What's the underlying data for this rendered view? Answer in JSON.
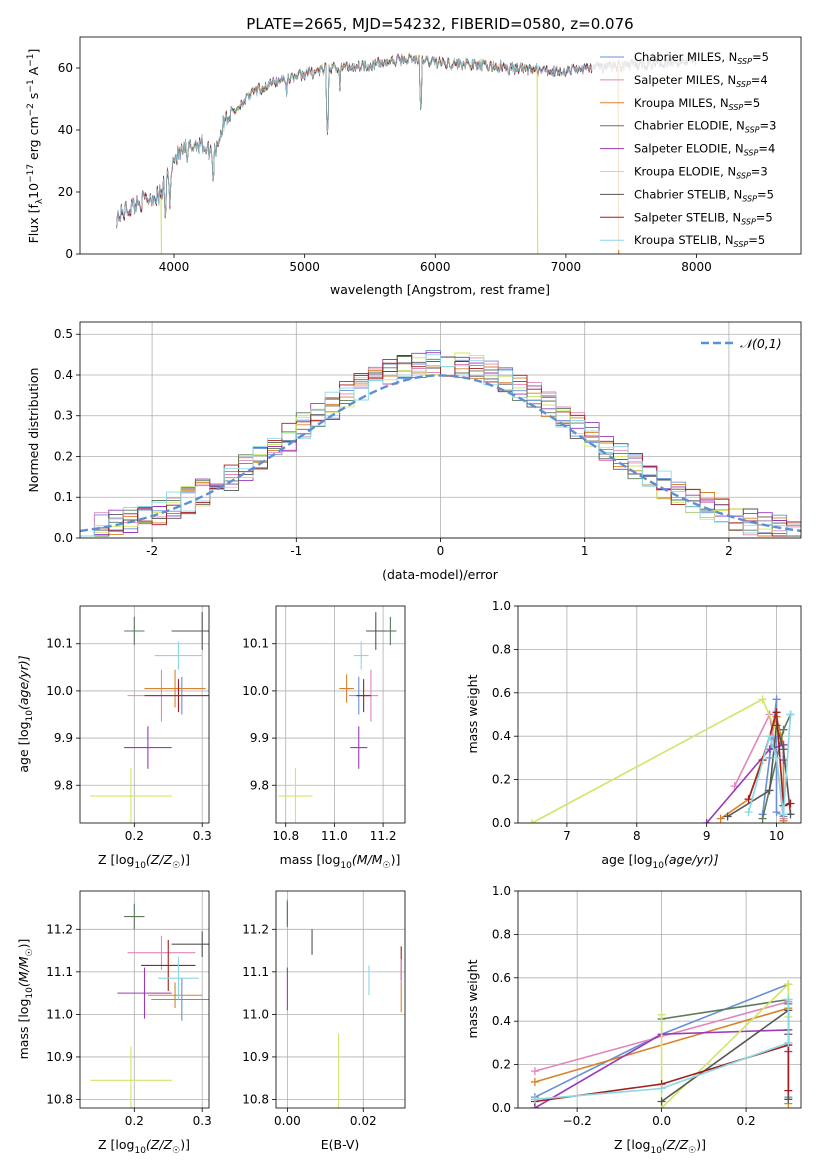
{
  "title": "PLATE=2665, MJD=54232, FIBERID=0580, z=0.076",
  "colors": {
    "c0": "#6b8fd6",
    "c1": "#e087bb",
    "c2": "#d9822b",
    "c3": "#5b7b5b",
    "c4": "#9a3ab8",
    "c5": "#d0e66a",
    "c6": "#555555",
    "c7": "#a31f1f",
    "c8": "#8ad8e6"
  },
  "legend_series": [
    {
      "name": "Chabrier MILES, N",
      "sub": "SSP",
      "n": "=5"
    },
    {
      "name": "Salpeter MILES, N",
      "sub": "SSP",
      "n": "=4"
    },
    {
      "name": "Kroupa MILES, N",
      "sub": "SSP",
      "n": "=5"
    },
    {
      "name": "Chabrier ELODIE, N",
      "sub": "SSP",
      "n": "=3"
    },
    {
      "name": "Salpeter ELODIE, N",
      "sub": "SSP",
      "n": "=4"
    },
    {
      "name": "Kroupa ELODIE, N",
      "sub": "SSP",
      "n": "=3"
    },
    {
      "name": "Chabrier STELIB, N",
      "sub": "SSP",
      "n": "=5"
    },
    {
      "name": "Salpeter STELIB, N",
      "sub": "SSP",
      "n": "=5"
    },
    {
      "name": "Kroupa STELIB, N",
      "sub": "SSP",
      "n": "=5"
    }
  ],
  "chart_data": [
    {
      "id": "spectrum",
      "type": "line",
      "xlabel": "wavelength [Angstrom, rest frame]",
      "ylabel_parts": {
        "a": "Flux [f",
        "b": "λ",
        "c": "10",
        "d": "−17",
        "e": " erg cm",
        "f": "−2",
        "g": " s",
        "h": "−1",
        "i": " A",
        "j": "−1",
        "k": "]"
      },
      "xlim": [
        3280,
        8800
      ],
      "ylim": [
        0,
        70
      ],
      "xticks": [
        4000,
        5000,
        6000,
        7000,
        8000
      ],
      "yticks": [
        0,
        20,
        40,
        60
      ],
      "continuum": {
        "x": [
          3560,
          3700,
          3800,
          3900,
          3950,
          4000,
          4100,
          4200,
          4300,
          4400,
          4500,
          4600,
          4800,
          5000,
          5200,
          5500,
          5800,
          6000,
          6300,
          6600,
          6900,
          7200,
          7500,
          7800,
          8000
        ],
        "y": [
          12,
          16,
          18,
          19,
          26,
          31,
          34,
          36,
          32,
          44,
          48,
          52,
          56,
          58,
          60,
          61,
          63,
          62,
          61,
          60,
          59,
          60,
          61,
          62,
          63
        ]
      },
      "absorption_lines": [
        {
          "x": 3934,
          "y": 10
        },
        {
          "x": 3968,
          "y": 15
        },
        {
          "x": 4102,
          "y": 28
        },
        {
          "x": 4300,
          "y": 22
        },
        {
          "x": 4861,
          "y": 50
        },
        {
          "x": 5175,
          "y": 38
        },
        {
          "x": 5270,
          "y": 53
        },
        {
          "x": 5890,
          "y": 45
        },
        {
          "x": 6563,
          "y": 55
        }
      ],
      "dropouts": [
        {
          "series": 5,
          "x": [
            3900,
            6780
          ]
        },
        {
          "series": 2,
          "x": [
            7400
          ]
        }
      ],
      "grid": false
    },
    {
      "id": "residual-histogram",
      "type": "bar",
      "xlabel": "(data-model)/error",
      "ylabel": "Normed distribution",
      "xlim": [
        -2.5,
        2.5
      ],
      "ylim": [
        0,
        0.53
      ],
      "xticks": [
        -2,
        -1,
        0,
        1,
        2
      ],
      "yticks": [
        0.0,
        0.1,
        0.2,
        0.3,
        0.4,
        0.5
      ],
      "bin_width": 0.1,
      "reference": {
        "name": "𝒩(0,1)",
        "mean": 0,
        "sd": 1
      },
      "legend_position": "top-right",
      "grid": true
    },
    {
      "id": "age-vs-Z",
      "type": "scatter",
      "xlabel": "Z [log",
      "xlabel_sub": "10",
      "xlabel_tail": "(Z/Z",
      "xlabel_end": ")]",
      "ylabel": "age  [log",
      "ylabel_sub": "10",
      "ylabel_tail": "(age/yr)]",
      "xlim": [
        0.12,
        0.31
      ],
      "ylim": [
        9.72,
        10.18
      ],
      "xticks": [
        0.2,
        0.3
      ],
      "yticks": [
        9.8,
        9.9,
        10.0,
        10.1
      ],
      "points": [
        {
          "s": 0,
          "x": 0.27,
          "y": 9.99,
          "xe": 0.045,
          "ye": 0.04
        },
        {
          "s": 1,
          "x": 0.24,
          "y": 9.99,
          "xe": 0.05,
          "ye": 0.055
        },
        {
          "s": 2,
          "x": 0.26,
          "y": 10.005,
          "xe": 0.045,
          "ye": 0.04
        },
        {
          "s": 3,
          "x": 0.2,
          "y": 10.127,
          "xe": 0.015,
          "ye": 0.03
        },
        {
          "s": 4,
          "x": 0.22,
          "y": 9.88,
          "xe": 0.035,
          "ye": 0.045
        },
        {
          "s": 5,
          "x": 0.195,
          "y": 9.777,
          "xe": 0.06,
          "ye": 0.06
        },
        {
          "s": 6,
          "x": 0.3,
          "y": 10.127,
          "xe": 0.045,
          "ye": 0.04
        },
        {
          "s": 7,
          "x": 0.265,
          "y": 9.99,
          "xe": 0.05,
          "ye": 0.035
        },
        {
          "s": 8,
          "x": 0.265,
          "y": 10.075,
          "xe": 0.035,
          "ye": 0.03
        }
      ],
      "grid": true
    },
    {
      "id": "age-vs-mass",
      "type": "scatter",
      "xlabel": "mass [log",
      "xlabel_sub": "10",
      "xlabel_tail": "(M/M",
      "xlabel_end": ")]",
      "xlim": [
        10.76,
        11.29
      ],
      "ylim": [
        9.72,
        10.18
      ],
      "xticks": [
        10.8,
        11.0,
        11.2
      ],
      "yticks": [
        9.8,
        9.9,
        10.0,
        10.1
      ],
      "points": [
        {
          "s": 0,
          "x": 11.1,
          "y": 9.99,
          "xe": 0.04,
          "ye": 0.04
        },
        {
          "s": 1,
          "x": 11.15,
          "y": 9.99,
          "xe": 0.03,
          "ye": 0.055
        },
        {
          "s": 2,
          "x": 11.05,
          "y": 10.005,
          "xe": 0.03,
          "ye": 0.03
        },
        {
          "s": 3,
          "x": 11.23,
          "y": 10.127,
          "xe": 0.025,
          "ye": 0.03
        },
        {
          "s": 4,
          "x": 11.1,
          "y": 9.88,
          "xe": 0.035,
          "ye": 0.045
        },
        {
          "s": 5,
          "x": 10.84,
          "y": 9.777,
          "xe": 0.07,
          "ye": 0.06
        },
        {
          "s": 6,
          "x": 11.17,
          "y": 10.127,
          "xe": 0.04,
          "ye": 0.04
        },
        {
          "s": 7,
          "x": 11.12,
          "y": 9.99,
          "xe": 0.03,
          "ye": 0.035
        },
        {
          "s": 8,
          "x": 11.11,
          "y": 10.075,
          "xe": 0.03,
          "ye": 0.03
        }
      ],
      "grid": true
    },
    {
      "id": "mass-weight-vs-age",
      "type": "line",
      "xlabel": "age  [log",
      "xlabel_sub": "10",
      "xlabel_tail": "(age/yr)]",
      "ylabel": "mass weight",
      "xlim": [
        6.3,
        10.35
      ],
      "ylim": [
        0,
        1
      ],
      "xticks": [
        7,
        8,
        9,
        10
      ],
      "yticks": [
        0.0,
        0.2,
        0.4,
        0.6,
        0.8,
        1.0
      ],
      "series": [
        {
          "s": 0,
          "x": [
            9.8,
            9.9,
            10.0,
            10.0,
            10.1
          ],
          "y": [
            0.04,
            0.3,
            0.57,
            0.05,
            0.03
          ]
        },
        {
          "s": 1,
          "x": [
            9.4,
            9.9,
            10.0,
            10.1
          ],
          "y": [
            0.17,
            0.5,
            0.3,
            0.02
          ]
        },
        {
          "s": 2,
          "x": [
            9.2,
            9.6,
            10.0,
            10.1,
            10.1
          ],
          "y": [
            0.02,
            0.11,
            0.49,
            0.36,
            0.01
          ]
        },
        {
          "s": 3,
          "x": [
            9.8,
            10.1,
            10.2
          ],
          "y": [
            0.02,
            0.43,
            0.5
          ]
        },
        {
          "s": 4,
          "x": [
            9.0,
            9.9,
            10.1,
            10.1
          ],
          "y": [
            0.0,
            0.34,
            0.36,
            0.29
          ]
        },
        {
          "s": 5,
          "x": [
            6.5,
            9.8,
            10.0
          ],
          "y": [
            0.0,
            0.57,
            0.42
          ]
        },
        {
          "s": 6,
          "x": [
            9.3,
            9.9,
            10.0,
            10.1,
            10.2
          ],
          "y": [
            0.03,
            0.15,
            0.45,
            0.34,
            0.04
          ]
        },
        {
          "s": 7,
          "x": [
            9.6,
            9.8,
            10.0,
            10.1,
            10.2
          ],
          "y": [
            0.11,
            0.29,
            0.51,
            0.08,
            0.09
          ]
        },
        {
          "s": 8,
          "x": [
            9.6,
            9.9,
            10.0,
            10.1,
            10.2
          ],
          "y": [
            0.05,
            0.4,
            0.3,
            0.04,
            0.5
          ]
        }
      ],
      "grid": true
    },
    {
      "id": "mass-vs-Z",
      "type": "scatter",
      "ylabel": "mass [log",
      "ylabel_sub": "10",
      "ylabel_tail": "(M/M",
      "ylabel_end": ")]",
      "xlabel": "Z [log",
      "xlabel_sub": "10",
      "xlabel_tail": "(Z/Z",
      "xlabel_end": ")]",
      "xlim": [
        0.12,
        0.31
      ],
      "ylim": [
        10.78,
        11.29
      ],
      "xticks": [
        0.2,
        0.3
      ],
      "yticks": [
        10.8,
        10.9,
        11.0,
        11.1,
        11.2
      ],
      "points": [
        {
          "s": 0,
          "x": 0.27,
          "y": 11.035,
          "xe": 0.045,
          "ye": 0.05
        },
        {
          "s": 1,
          "x": 0.24,
          "y": 11.145,
          "xe": 0.05,
          "ye": 0.04
        },
        {
          "s": 2,
          "x": 0.26,
          "y": 11.045,
          "xe": 0.04,
          "ye": 0.03
        },
        {
          "s": 3,
          "x": 0.2,
          "y": 11.23,
          "xe": 0.015,
          "ye": 0.03
        },
        {
          "s": 4,
          "x": 0.215,
          "y": 11.05,
          "xe": 0.04,
          "ye": 0.06
        },
        {
          "s": 5,
          "x": 0.195,
          "y": 10.845,
          "xe": 0.06,
          "ye": 0.08
        },
        {
          "s": 6,
          "x": 0.3,
          "y": 11.165,
          "xe": 0.045,
          "ye": 0.03
        },
        {
          "s": 7,
          "x": 0.25,
          "y": 11.115,
          "xe": 0.04,
          "ye": 0.06
        },
        {
          "s": 8,
          "x": 0.265,
          "y": 11.085,
          "xe": 0.03,
          "ye": 0.05
        }
      ],
      "grid": true
    },
    {
      "id": "mass-vs-EBV",
      "type": "scatter",
      "xlabel": "E(B-V)",
      "xlim": [
        -0.003,
        0.031
      ],
      "ylim": [
        10.78,
        11.29
      ],
      "xticks": [
        0.0,
        0.02
      ],
      "yticks": [
        10.8,
        10.9,
        11.0,
        11.1,
        11.2
      ],
      "points": [
        {
          "s": 0,
          "x": 0.0,
          "y": 11.24,
          "ye": 0.03
        },
        {
          "s": 4,
          "x": 0.0,
          "y": 11.06,
          "ye": 0.05
        },
        {
          "s": 3,
          "x": 0.0,
          "y": 11.235,
          "ye": 0.03
        },
        {
          "s": 6,
          "x": 0.0065,
          "y": 11.17,
          "ye": 0.03
        },
        {
          "s": 5,
          "x": 0.0135,
          "y": 10.86,
          "ye": 0.095
        },
        {
          "s": 8,
          "x": 0.0215,
          "y": 11.08,
          "ye": 0.035
        },
        {
          "s": 7,
          "x": 0.03,
          "y": 11.12,
          "ye": 0.04
        },
        {
          "s": 2,
          "x": 0.03,
          "y": 11.04,
          "ye": 0.035
        },
        {
          "s": 1,
          "x": 0.03,
          "y": 11.1,
          "ye": 0.03
        }
      ],
      "grid": true
    },
    {
      "id": "mass-weight-vs-Z",
      "type": "line",
      "xlabel": "Z [log",
      "xlabel_sub": "10",
      "xlabel_tail": "(Z/Z",
      "xlabel_end": ")]",
      "ylabel": "mass weight",
      "xlim": [
        -0.34,
        0.33
      ],
      "ylim": [
        0,
        1
      ],
      "xticks": [
        -0.2,
        0.0,
        0.2
      ],
      "yticks": [
        0.0,
        0.2,
        0.4,
        0.6,
        0.8,
        1.0
      ],
      "xtick_labels": [
        "−0.2",
        "0.0",
        "0.2"
      ],
      "series": [
        {
          "s": 0,
          "x": [
            -0.3,
            0.0,
            0.3,
            0.3
          ],
          "y": [
            0.05,
            0.34,
            0.57,
            0.05
          ]
        },
        {
          "s": 1,
          "x": [
            -0.3,
            0.3,
            0.3
          ],
          "y": [
            0.17,
            0.49,
            0.3
          ]
        },
        {
          "s": 2,
          "x": [
            -0.3,
            0.3,
            0.3,
            0.3
          ],
          "y": [
            0.12,
            0.46,
            0.36,
            0.02
          ]
        },
        {
          "s": 3,
          "x": [
            0.0,
            0.3,
            0.3
          ],
          "y": [
            0.41,
            0.5,
            0.48
          ]
        },
        {
          "s": 4,
          "x": [
            -0.3,
            0.0,
            0.3,
            0.3
          ],
          "y": [
            0.0,
            0.34,
            0.36,
            0.26
          ]
        },
        {
          "s": 5,
          "x": [
            0.0,
            0.0,
            0.3,
            0.3
          ],
          "y": [
            0.43,
            0.0,
            0.57,
            0.42
          ]
        },
        {
          "s": 6,
          "x": [
            0.0,
            0.3,
            0.3,
            0.3
          ],
          "y": [
            0.03,
            0.45,
            0.34,
            0.04
          ]
        },
        {
          "s": 7,
          "x": [
            -0.3,
            0.0,
            0.3,
            0.3
          ],
          "y": [
            0.03,
            0.11,
            0.29,
            0.08
          ]
        },
        {
          "s": 8,
          "x": [
            -0.3,
            0.0,
            0.3,
            0.3
          ],
          "y": [
            0.04,
            0.09,
            0.3,
            0.5
          ]
        }
      ],
      "grid": true
    }
  ]
}
